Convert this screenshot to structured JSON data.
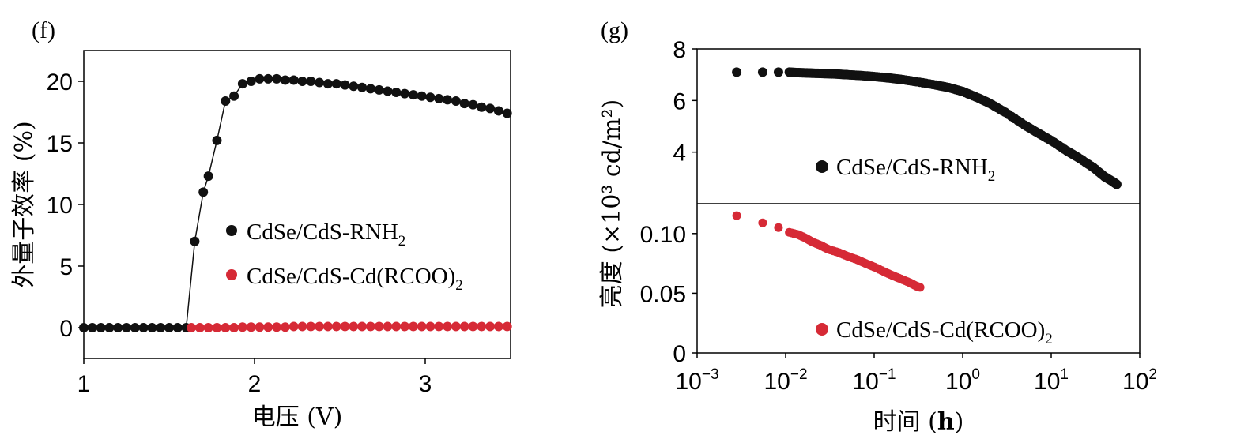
{
  "chart_data": [
    {
      "panel_label": "(f)",
      "type": "line",
      "xlabel": "电压 (V)",
      "ylabel": "外量子效率 (%)",
      "xlim": [
        1,
        3.5
      ],
      "ylim": [
        -2.5,
        22.5
      ],
      "xticks": [
        "1",
        "2",
        "3"
      ],
      "yticks": [
        "0",
        "5",
        "10",
        "15",
        "20"
      ],
      "legend": "center-right",
      "series": [
        {
          "name": "CdSe/CdS-RNH2",
          "name_main": "CdSe/CdS-RNH",
          "name_sub": "2",
          "color": "#111111",
          "x": [
            1.0,
            1.05,
            1.1,
            1.15,
            1.2,
            1.25,
            1.3,
            1.35,
            1.4,
            1.45,
            1.5,
            1.55,
            1.6,
            1.65,
            1.7,
            1.73,
            1.78,
            1.83,
            1.88,
            1.93,
            1.98,
            2.03,
            2.08,
            2.13,
            2.18,
            2.23,
            2.28,
            2.33,
            2.38,
            2.43,
            2.48,
            2.53,
            2.58,
            2.63,
            2.68,
            2.73,
            2.78,
            2.83,
            2.88,
            2.93,
            2.98,
            3.03,
            3.08,
            3.13,
            3.18,
            3.23,
            3.28,
            3.33,
            3.38,
            3.43,
            3.48
          ],
          "y": [
            0,
            0,
            0,
            0,
            0,
            0,
            0,
            0,
            0,
            0,
            0,
            0,
            0,
            7.0,
            11.0,
            12.3,
            15.2,
            18.4,
            18.8,
            19.8,
            20.0,
            20.2,
            20.2,
            20.2,
            20.1,
            20.1,
            20.0,
            20.0,
            19.9,
            19.8,
            19.8,
            19.7,
            19.6,
            19.5,
            19.4,
            19.3,
            19.2,
            19.1,
            19.0,
            18.9,
            18.8,
            18.7,
            18.6,
            18.5,
            18.4,
            18.2,
            18.1,
            17.9,
            17.8,
            17.6,
            17.4
          ]
        },
        {
          "name": "CdSe/CdS-Cd(RCOO)2",
          "name_main": "CdSe/CdS-Cd(RCOO)",
          "name_sub": "2",
          "color": "#d62a36",
          "x": [
            1.63,
            1.68,
            1.73,
            1.78,
            1.83,
            1.88,
            1.93,
            1.98,
            2.03,
            2.08,
            2.13,
            2.18,
            2.23,
            2.28,
            2.33,
            2.38,
            2.43,
            2.48,
            2.53,
            2.58,
            2.63,
            2.68,
            2.73,
            2.78,
            2.83,
            2.88,
            2.93,
            2.98,
            3.03,
            3.08,
            3.13,
            3.18,
            3.23,
            3.28,
            3.33,
            3.38,
            3.43,
            3.48
          ],
          "y": [
            0,
            0,
            0,
            0,
            0,
            0,
            0.05,
            0.05,
            0.05,
            0.05,
            0.05,
            0.05,
            0.1,
            0.1,
            0.1,
            0.1,
            0.1,
            0.1,
            0.1,
            0.1,
            0.1,
            0.1,
            0.1,
            0.1,
            0.1,
            0.1,
            0.1,
            0.1,
            0.1,
            0.1,
            0.1,
            0.1,
            0.1,
            0.1,
            0.1,
            0.1,
            0.1,
            0.1
          ]
        }
      ]
    },
    {
      "panel_label": "(g)",
      "type": "scatter",
      "xlabel": "时间 (h)",
      "ylabel": "亮度 (×10³ cd/m²)",
      "xscale": "log",
      "xlim": [
        0.001,
        100
      ],
      "xticks": [
        "10^-3",
        "10^-2",
        "10^-1",
        "10^0",
        "10^1",
        "10^2"
      ],
      "panels": [
        {
          "position": "top",
          "ylim": [
            2.0,
            8.0
          ],
          "yticks": [
            "4",
            "6",
            "8"
          ],
          "series": [
            {
              "name": "CdSe/CdS-RNH2",
              "name_main": "CdSe/CdS-RNH",
              "name_sub": "2",
              "color": "#111111",
              "x": [
                0.0028,
                0.0055,
                0.0083,
                0.011,
                0.014,
                0.017,
                0.02,
                0.025,
                0.03,
                0.04,
                0.05,
                0.07,
                0.1,
                0.15,
                0.2,
                0.3,
                0.5,
                0.7,
                1.0,
                1.5,
                2.0,
                3.0,
                5.0,
                7.0,
                10.0,
                15.0,
                20.0,
                30.0,
                40.0,
                50.0,
                55.0
              ],
              "y": [
                7.1,
                7.1,
                7.1,
                7.1,
                7.08,
                7.07,
                7.06,
                7.05,
                7.04,
                7.02,
                7.0,
                6.97,
                6.93,
                6.87,
                6.82,
                6.73,
                6.6,
                6.5,
                6.35,
                6.1,
                5.9,
                5.55,
                5.05,
                4.75,
                4.45,
                4.05,
                3.8,
                3.4,
                3.05,
                2.85,
                2.75
              ]
            }
          ]
        },
        {
          "position": "bottom",
          "ylim": [
            0,
            0.125
          ],
          "yticks": [
            "0",
            "0.05",
            "0.10"
          ],
          "series": [
            {
              "name": "CdSe/CdS-Cd(RCOO)2",
              "name_main": "CdSe/CdS-Cd(RCOO)",
              "name_sub": "2",
              "color": "#d62a36",
              "x": [
                0.0028,
                0.0055,
                0.0083,
                0.011,
                0.014,
                0.017,
                0.02,
                0.025,
                0.03,
                0.04,
                0.05,
                0.065,
                0.08,
                0.1,
                0.13,
                0.16,
                0.2,
                0.25,
                0.3,
                0.33
              ],
              "y": [
                0.115,
                0.109,
                0.105,
                0.101,
                0.099,
                0.096,
                0.093,
                0.09,
                0.087,
                0.084,
                0.081,
                0.078,
                0.075,
                0.072,
                0.068,
                0.065,
                0.062,
                0.059,
                0.056,
                0.055
              ]
            }
          ]
        }
      ]
    }
  ]
}
